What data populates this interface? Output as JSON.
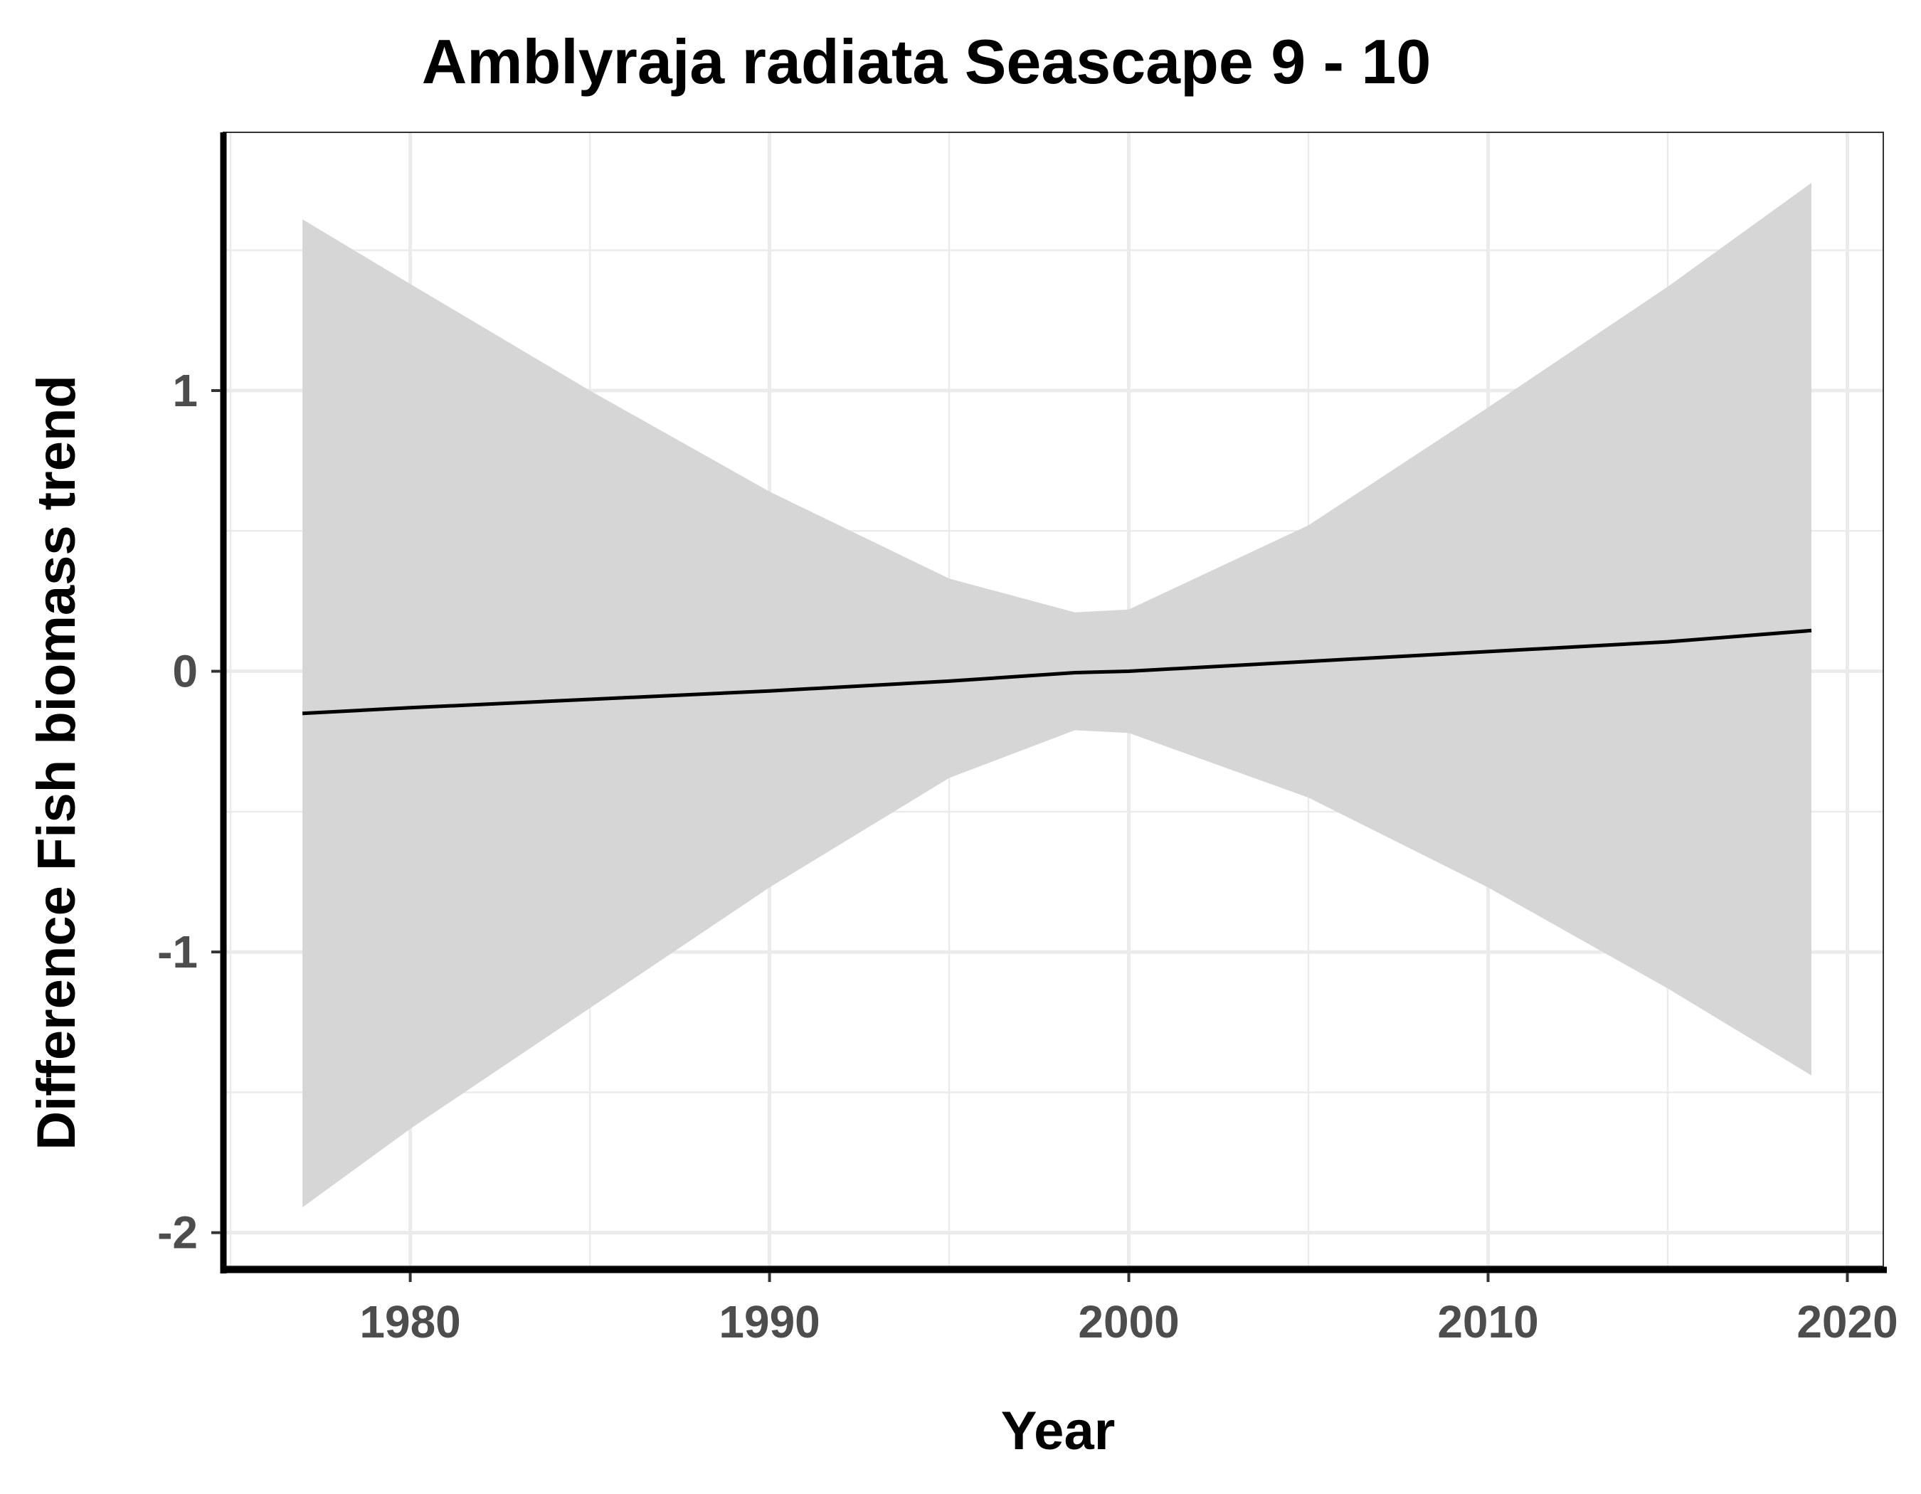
{
  "chart_data": {
    "type": "line",
    "title": "Amblyraja radiata Seascape 9 - 10",
    "xlabel": "Year",
    "ylabel": "Difference Fish biomass trend",
    "xlim": [
      1974.8,
      2021
    ],
    "ylim": [
      -2.12,
      1.92
    ],
    "x_ticks": [
      1980,
      1990,
      2000,
      2010,
      2020
    ],
    "x_tick_labels": [
      "1980",
      "1990",
      "2000",
      "2010",
      "2020"
    ],
    "y_ticks": [
      -2,
      -1,
      0,
      1
    ],
    "y_tick_labels": [
      "-2",
      "-1",
      "0",
      "1"
    ],
    "x_minor_ticks": [
      1975,
      1985,
      1995,
      2005,
      2015
    ],
    "y_minor_ticks": [
      -1.5,
      -0.5,
      0.5,
      1.5
    ],
    "grid": true,
    "legend": "none",
    "colors": {
      "line": "#000000",
      "band": "#d6d6d6",
      "grid": "#ebebeb",
      "axis": "#000000"
    },
    "series": [
      {
        "x": [
          1977,
          1980,
          1985,
          1990,
          1995,
          1998.5,
          2000,
          2005,
          2010,
          2015,
          2019
        ],
        "y": [
          -0.15,
          -0.13,
          -0.1,
          -0.07,
          -0.035,
          -0.005,
          0.0,
          0.035,
          0.07,
          0.105,
          0.145
        ],
        "lower": [
          -1.91,
          -1.63,
          -1.2,
          -0.77,
          -0.38,
          -0.21,
          -0.22,
          -0.45,
          -0.77,
          -1.13,
          -1.44
        ],
        "upper": [
          1.61,
          1.38,
          1.0,
          0.64,
          0.33,
          0.21,
          0.22,
          0.52,
          0.94,
          1.37,
          1.74
        ]
      }
    ]
  }
}
